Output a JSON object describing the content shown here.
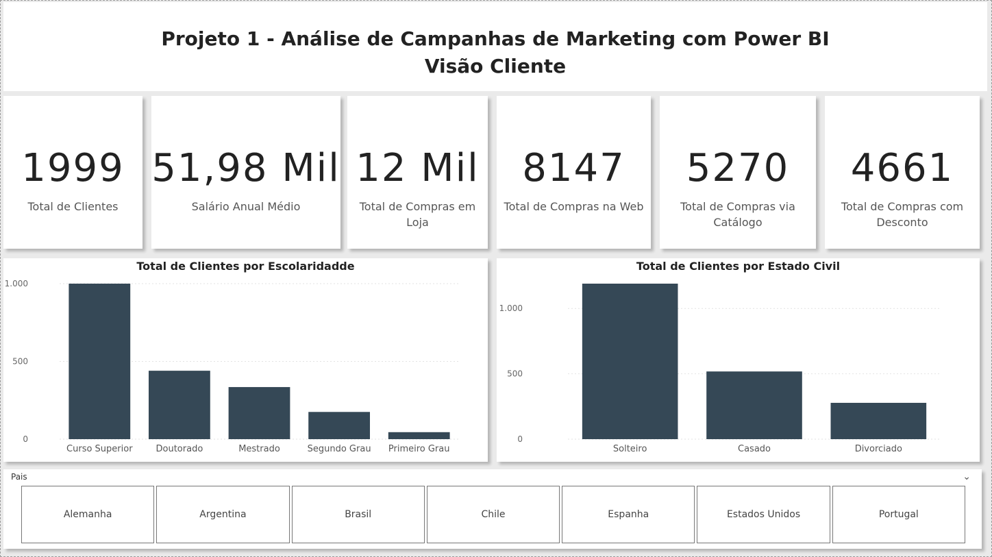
{
  "header": {
    "title_line1": "Projeto 1 - Análise de Campanhas de Marketing com Power BI",
    "title_line2": "Visão Cliente"
  },
  "cards": [
    {
      "value": "1999",
      "label": "Total de Clientes"
    },
    {
      "value": "51,98 Mil",
      "label": "Salário Anual Médio"
    },
    {
      "value": "12 Mil",
      "label": "Total de Compras em Loja"
    },
    {
      "value": "8147",
      "label": "Total de Compras na Web"
    },
    {
      "value": "5270",
      "label": "Total de Compras via Catálogo"
    },
    {
      "value": "4661",
      "label": "Total de Compras com Desconto"
    }
  ],
  "chart_data": [
    {
      "type": "bar",
      "title": "Total de Clientes por Escolaridadde",
      "categories": [
        "Curso Superior",
        "Doutorado",
        "Mestrado",
        "Segundo Grau",
        "Primeiro Grau"
      ],
      "values": [
        1000,
        440,
        335,
        175,
        45
      ],
      "ylim": [
        0,
        1000
      ],
      "yticks": [
        0,
        500,
        1000
      ],
      "ytick_labels": [
        "0",
        "500",
        "1.000"
      ],
      "grid": true,
      "bar_color": "#354856"
    },
    {
      "type": "bar",
      "title": "Total de Clientes por Estado Civil",
      "categories": [
        "Solteiro",
        "Casado",
        "Divorciado"
      ],
      "values": [
        1190,
        518,
        278
      ],
      "ylim": [
        0,
        1190
      ],
      "yticks": [
        0,
        500,
        1000
      ],
      "ytick_labels": [
        "0",
        "500",
        "1.000"
      ],
      "grid": true,
      "bar_color": "#354856"
    }
  ],
  "slicer": {
    "label": "Pais",
    "chevron_icon": "chevron-down-icon",
    "items": [
      "Alemanha",
      "Argentina",
      "Brasil",
      "Chile",
      "Espanha",
      "Estados Unidos",
      "Portugal"
    ]
  }
}
